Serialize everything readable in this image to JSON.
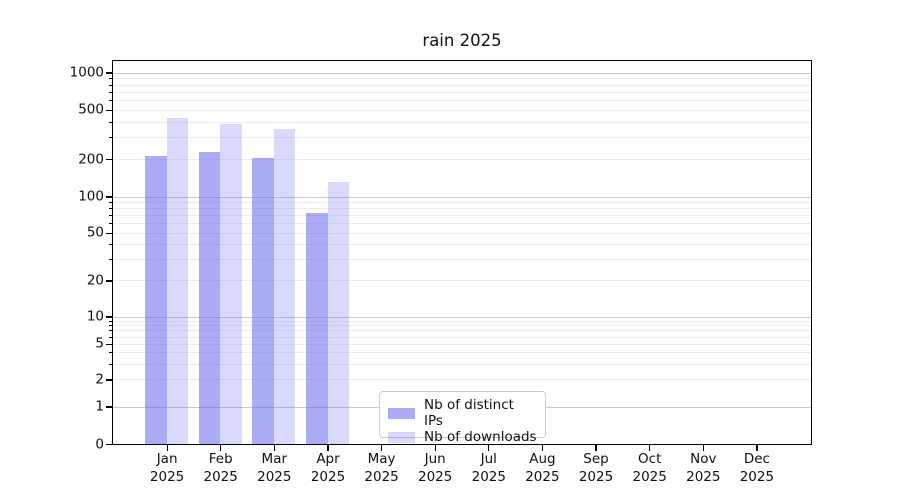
{
  "chart_data": {
    "type": "bar",
    "title": "rain 2025",
    "scale_y": "symlog",
    "categories": [
      "Jan",
      "Feb",
      "Mar",
      "Apr",
      "May",
      "Jun",
      "Jul",
      "Aug",
      "Sep",
      "Oct",
      "Nov",
      "Dec"
    ],
    "x_year": "2025",
    "series": [
      {
        "name": "Nb of distinct IPs",
        "color": "#6666ee",
        "alpha": 0.55,
        "values": [
          215,
          232,
          207,
          74,
          0,
          0,
          0,
          0,
          0,
          0,
          0,
          0
        ]
      },
      {
        "name": "Nb of downloads",
        "color": "#6666ee",
        "alpha": 0.25,
        "values": [
          440,
          395,
          360,
          133,
          0,
          0,
          0,
          0,
          0,
          0,
          0,
          0
        ]
      }
    ],
    "y_ticks": [
      0,
      1,
      2,
      5,
      10,
      20,
      50,
      100,
      200,
      500,
      1000
    ],
    "ylim": [
      0,
      1200
    ],
    "grid": true,
    "legend_position": "lower center",
    "xlabel": "",
    "ylabel": ""
  }
}
